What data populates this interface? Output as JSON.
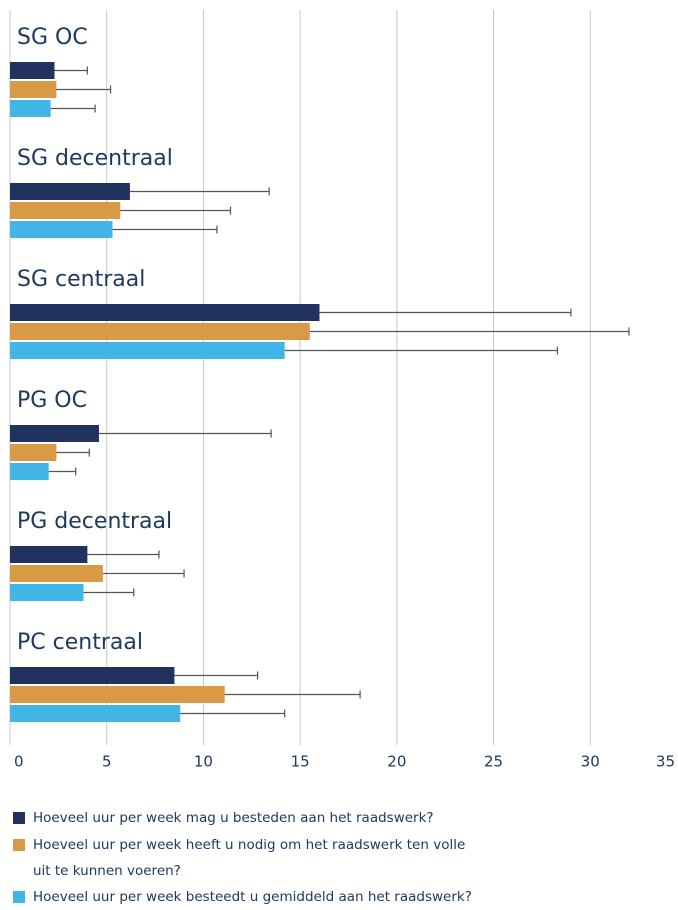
{
  "chart_data": {
    "type": "bar",
    "orientation": "horizontal",
    "categories": [
      "SG OC",
      "SG decentraal",
      "SG centraal",
      "PG OC",
      "PG decentraal",
      "PC centraal"
    ],
    "series": [
      {
        "name": "Hoeveel uur per week mag u besteden aan het raadswerk?",
        "color": "#22325f",
        "values": [
          2.3,
          6.2,
          16.0,
          4.6,
          4.0,
          8.5
        ],
        "errors": [
          1.7,
          7.2,
          13.0,
          8.9,
          3.7,
          4.3
        ]
      },
      {
        "name": "Hoeveel uur per week heeft u nodig om het raadswerk ten volle uit te kunnen voeren?",
        "color": "#d89a45",
        "values": [
          2.4,
          5.7,
          15.5,
          2.4,
          4.8,
          11.1
        ],
        "errors": [
          2.8,
          5.7,
          16.5,
          1.7,
          4.2,
          7.0
        ]
      },
      {
        "name": "Hoeveel uur per week besteedt u gemiddeld aan het raadswerk?",
        "color": "#41b6e6",
        "values": [
          2.1,
          5.3,
          14.2,
          2.0,
          3.8,
          8.8
        ],
        "errors": [
          2.3,
          5.4,
          14.1,
          1.4,
          2.6,
          5.4
        ]
      }
    ],
    "xlim": [
      0,
      35
    ],
    "xticks": [
      0,
      5,
      10,
      15,
      20,
      25,
      30,
      35
    ],
    "grid": true,
    "legend": "bottom"
  }
}
